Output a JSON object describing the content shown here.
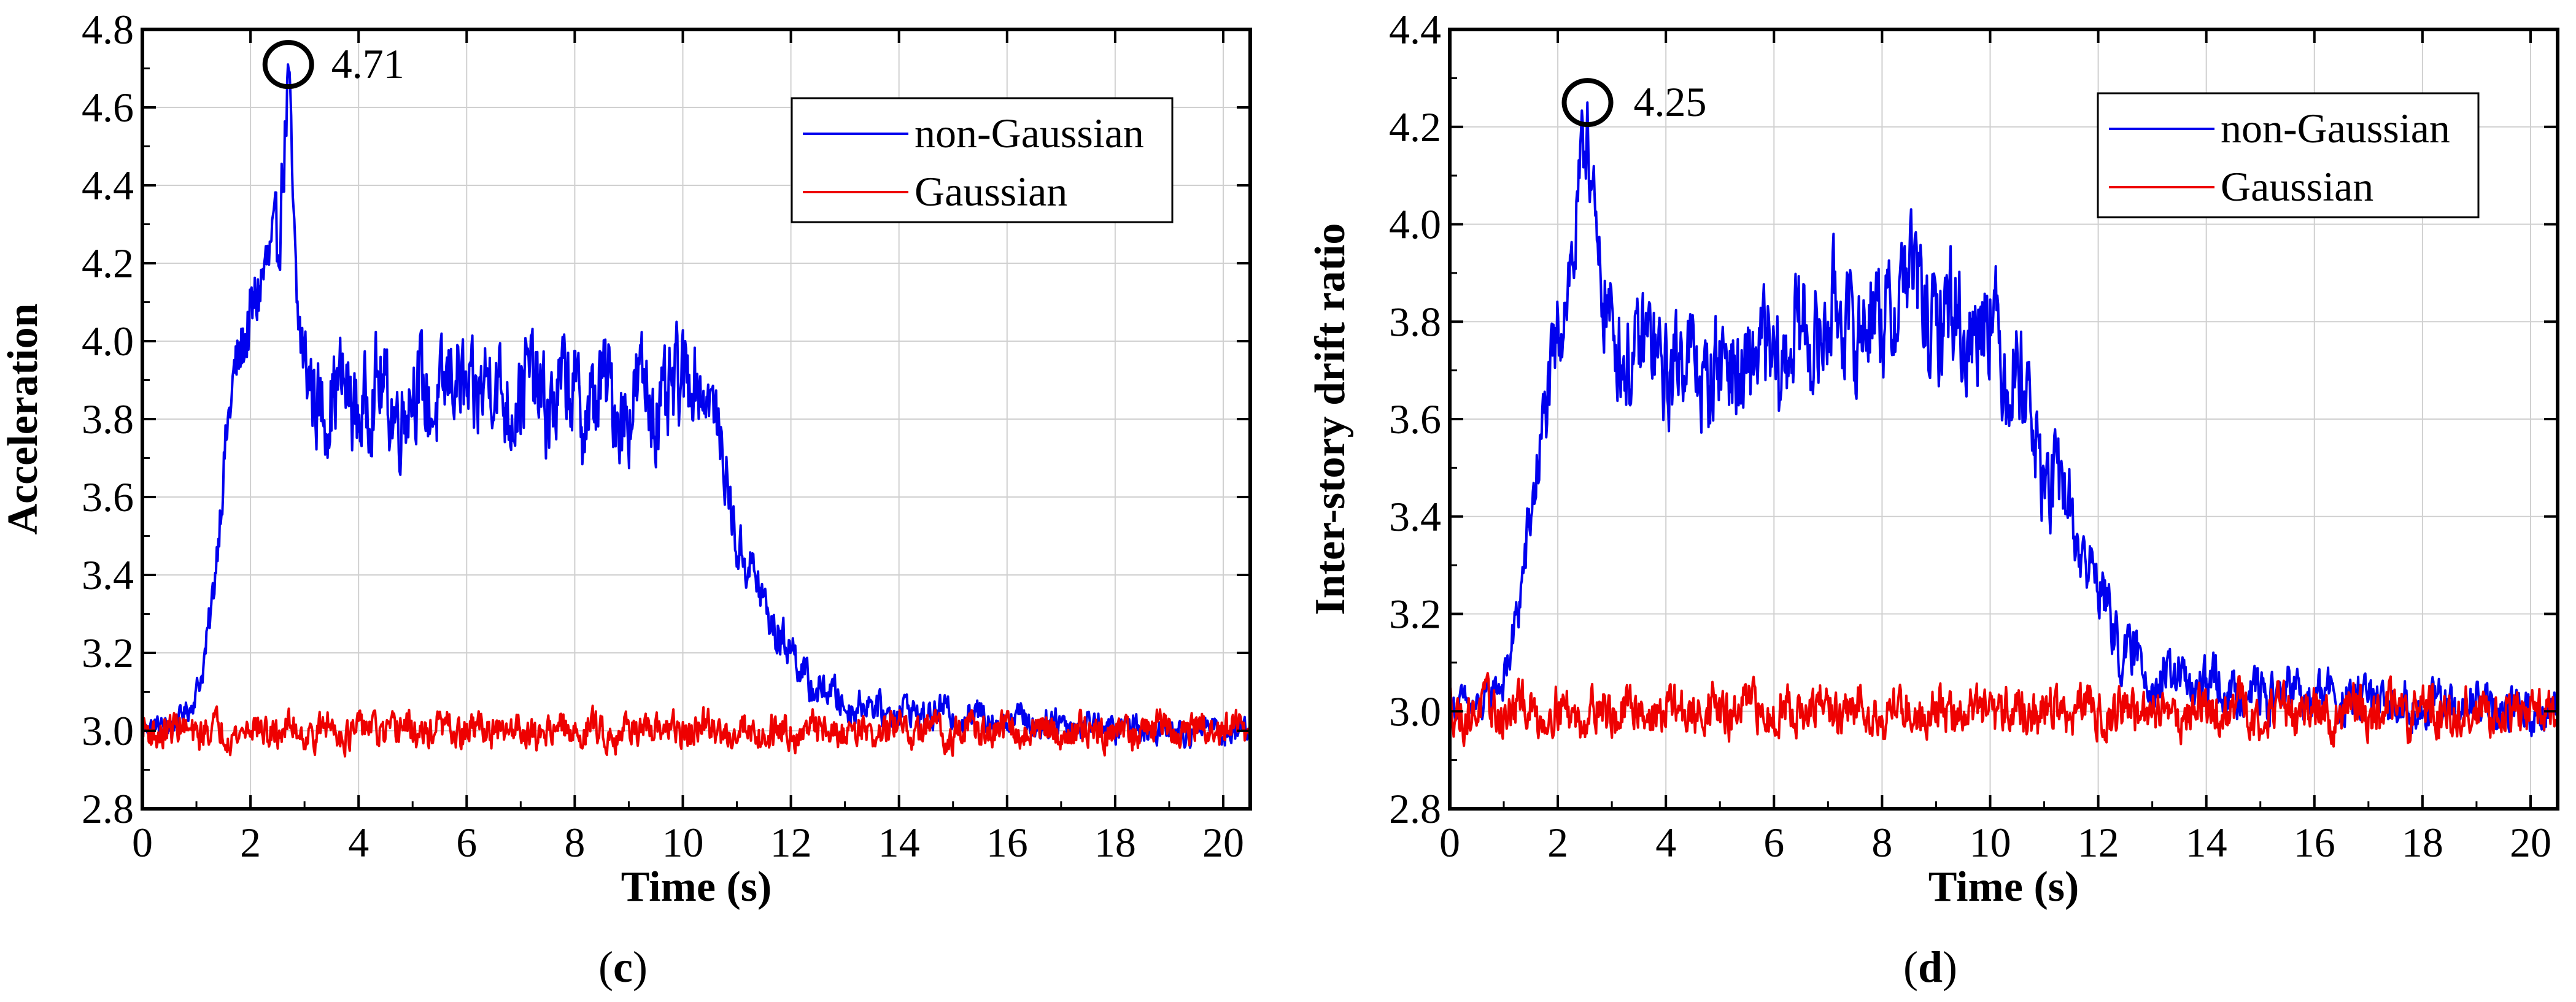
{
  "figure": {
    "panels": [
      "c",
      "d"
    ]
  },
  "chart_data": [
    {
      "type": "line",
      "panel_label": "c",
      "title": "",
      "xlabel": "Time (s)",
      "ylabel": "Acceleration",
      "xlim": [
        0,
        20.5
      ],
      "ylim": [
        2.8,
        4.8
      ],
      "xticks": [
        "0",
        "2",
        "4",
        "6",
        "8",
        "10",
        "12",
        "14",
        "16",
        "18",
        "20"
      ],
      "xtick_values": [
        0,
        2,
        4,
        6,
        8,
        10,
        12,
        14,
        16,
        18,
        20
      ],
      "yticks": [
        "2.8",
        "3.0",
        "3.2",
        "3.4",
        "3.6",
        "3.8",
        "4.0",
        "4.2",
        "4.4",
        "4.6",
        "4.8"
      ],
      "ytick_values": [
        2.8,
        3.0,
        3.2,
        3.4,
        3.6,
        3.8,
        4.0,
        4.2,
        4.4,
        4.6,
        4.8
      ],
      "grid": true,
      "legend_position": "top-right",
      "colors": {
        "non_gaussian": "#0000ee",
        "gaussian": "#ee0000"
      },
      "annotation": {
        "label": "4.71",
        "x": 2.7,
        "y": 4.71
      },
      "series": [
        {
          "name": "non-Gaussian",
          "color": "#0000ee",
          "key": [
            [
              0,
              3.0
            ],
            [
              0.5,
              3.02
            ],
            [
              0.9,
              3.05
            ],
            [
              1.1,
              3.15
            ],
            [
              1.3,
              3.35
            ],
            [
              1.5,
              3.65
            ],
            [
              1.7,
              3.9
            ],
            [
              1.9,
              4.05
            ],
            [
              2.1,
              4.1
            ],
            [
              2.3,
              4.15
            ],
            [
              2.5,
              4.25
            ],
            [
              2.7,
              4.71
            ],
            [
              2.85,
              4.05
            ],
            [
              3.0,
              3.9
            ],
            [
              3.5,
              3.85
            ],
            [
              4.0,
              3.85
            ],
            [
              5,
              3.85
            ],
            [
              6,
              3.88
            ],
            [
              7,
              3.87
            ],
            [
              8,
              3.85
            ],
            [
              9,
              3.85
            ],
            [
              10,
              3.85
            ],
            [
              10.2,
              3.95
            ],
            [
              10.5,
              3.85
            ],
            [
              10.8,
              3.65
            ],
            [
              11.0,
              3.5
            ],
            [
              11.4,
              3.35
            ],
            [
              11.8,
              3.25
            ],
            [
              12.2,
              3.15
            ],
            [
              12.6,
              3.1
            ],
            [
              13.0,
              3.07
            ],
            [
              14,
              3.05
            ],
            [
              16,
              3.03
            ],
            [
              18,
              3.01
            ],
            [
              20.5,
              3.0
            ]
          ],
          "amplitude": [
            [
              0,
              0.02
            ],
            [
              1,
              0.03
            ],
            [
              1.6,
              0.08
            ],
            [
              2,
              0.1
            ],
            [
              3,
              0.12
            ],
            [
              10,
              0.13
            ],
            [
              10.5,
              0.08
            ],
            [
              12,
              0.05
            ],
            [
              13,
              0.04
            ],
            [
              20.5,
              0.03
            ]
          ]
        },
        {
          "name": "Gaussian",
          "color": "#ee0000",
          "key": [
            [
              0,
              3.0
            ],
            [
              20.5,
              3.0
            ]
          ],
          "amplitude": [
            [
              0,
              0.04
            ],
            [
              20.5,
              0.04
            ]
          ]
        }
      ]
    },
    {
      "type": "line",
      "panel_label": "d",
      "title": "",
      "xlabel": "Time (s)",
      "ylabel": "Inter-story drift ratio",
      "xlim": [
        0,
        20.5
      ],
      "ylim": [
        2.8,
        4.4
      ],
      "xticks": [
        "0",
        "2",
        "4",
        "6",
        "8",
        "10",
        "12",
        "14",
        "16",
        "18",
        "20"
      ],
      "xtick_values": [
        0,
        2,
        4,
        6,
        8,
        10,
        12,
        14,
        16,
        18,
        20
      ],
      "yticks": [
        "2.8",
        "3.0",
        "3.2",
        "3.4",
        "3.6",
        "3.8",
        "4.0",
        "4.2",
        "4.4"
      ],
      "ytick_values": [
        2.8,
        3.0,
        3.2,
        3.4,
        3.6,
        3.8,
        4.0,
        4.2,
        4.4
      ],
      "grid": true,
      "legend_position": "top-right",
      "colors": {
        "non_gaussian": "#0000ee",
        "gaussian": "#ee0000"
      },
      "annotation": {
        "label": "4.25",
        "x": 2.55,
        "y": 4.25
      },
      "series": [
        {
          "name": "non-Gaussian",
          "color": "#0000ee",
          "key": [
            [
              0,
              3.0
            ],
            [
              0.6,
              3.02
            ],
            [
              1.0,
              3.05
            ],
            [
              1.3,
              3.25
            ],
            [
              1.6,
              3.45
            ],
            [
              1.8,
              3.65
            ],
            [
              2.0,
              3.8
            ],
            [
              2.3,
              3.9
            ],
            [
              2.55,
              4.25
            ],
            [
              2.75,
              3.9
            ],
            [
              3.0,
              3.75
            ],
            [
              4,
              3.72
            ],
            [
              5,
              3.7
            ],
            [
              6,
              3.72
            ],
            [
              7,
              3.8
            ],
            [
              8,
              3.8
            ],
            [
              8.4,
              3.9
            ],
            [
              9,
              3.8
            ],
            [
              10,
              3.8
            ],
            [
              10.5,
              3.7
            ],
            [
              11,
              3.5
            ],
            [
              11.5,
              3.4
            ],
            [
              12,
              3.25
            ],
            [
              12.5,
              3.12
            ],
            [
              13,
              3.07
            ],
            [
              14,
              3.05
            ],
            [
              16,
              3.03
            ],
            [
              18,
              3.01
            ],
            [
              20.5,
              3.0
            ]
          ],
          "amplitude": [
            [
              0,
              0.03
            ],
            [
              1,
              0.04
            ],
            [
              2,
              0.1
            ],
            [
              3,
              0.1
            ],
            [
              10,
              0.12
            ],
            [
              11,
              0.1
            ],
            [
              12,
              0.06
            ],
            [
              13,
              0.05
            ],
            [
              20.5,
              0.04
            ]
          ]
        },
        {
          "name": "Gaussian",
          "color": "#ee0000",
          "key": [
            [
              0,
              3.0
            ],
            [
              20.5,
              3.0
            ]
          ],
          "amplitude": [
            [
              0,
              0.045
            ],
            [
              20.5,
              0.045
            ]
          ]
        }
      ]
    }
  ]
}
